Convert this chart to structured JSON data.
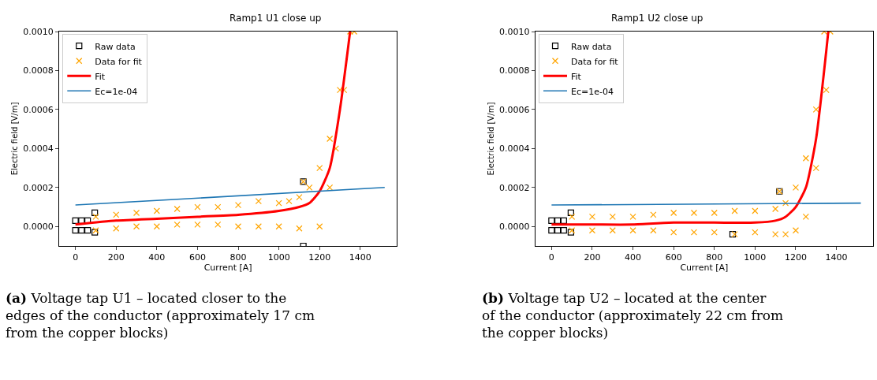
{
  "chart_data": [
    {
      "type": "scatter",
      "title": "Ramp1 U1 close up",
      "xlabel": "Current [A]",
      "ylabel": "Electric field [V/m]",
      "xlim": [
        -80,
        1580
      ],
      "ylim": [
        -0.0001,
        0.001
      ],
      "xticks": [
        0,
        200,
        400,
        600,
        800,
        1000,
        1200,
        1400
      ],
      "yticks": [
        {
          "value": 0,
          "label": "0.0000"
        },
        {
          "value": 0.0002,
          "label": "0.0002"
        },
        {
          "value": 0.0004,
          "label": "0.0004"
        },
        {
          "value": 0.0006,
          "label": "0.0006"
        },
        {
          "value": 0.0008,
          "label": "0.0008"
        },
        {
          "value": 0.001,
          "label": "0.0010"
        }
      ],
      "legend": "top left",
      "annotations": [
        "(a) Voltage tap U1 – located closer to the edges of the conductor (approximately 17 cm from the copper blocks)"
      ],
      "series": [
        {
          "name": "Raw data",
          "type": "scatter",
          "marker": "square",
          "color": "#000000",
          "x": [
            0,
            30,
            60,
            0,
            30,
            60,
            95,
            95,
            1120,
            1120
          ],
          "values": [
            3e-05,
            3e-05,
            3e-05,
            -2e-05,
            -2e-05,
            -2e-05,
            7e-05,
            -3e-05,
            0.00023,
            -0.0001
          ]
        },
        {
          "name": "Data for fit",
          "type": "scatter",
          "marker": "cross",
          "color": "#ffa500",
          "x": [
            100,
            200,
            300,
            400,
            500,
            600,
            700,
            800,
            900,
            1000,
            1050,
            1100,
            1150,
            1200,
            1250,
            1300,
            1350,
            100,
            200,
            300,
            400,
            500,
            600,
            700,
            800,
            900,
            1000,
            1100,
            1200,
            1250,
            1280,
            1320,
            1370,
            1120
          ],
          "values": [
            5e-05,
            6e-05,
            7e-05,
            8e-05,
            9e-05,
            0.0001,
            0.0001,
            0.00011,
            0.00013,
            0.00012,
            0.00013,
            0.00015,
            0.0002,
            0.0003,
            0.00045,
            0.0007,
            0.001,
            -2e-05,
            -1e-05,
            0,
            0,
            1e-05,
            1e-05,
            1e-05,
            0,
            0,
            0,
            -1e-05,
            0,
            0.0002,
            0.0004,
            0.0007,
            0.001,
            0.00023
          ]
        },
        {
          "name": "Fit",
          "type": "line",
          "color": "#ff0000",
          "x": [
            0,
            200,
            400,
            600,
            800,
            1000,
            1100,
            1150,
            1200,
            1250,
            1300,
            1350
          ],
          "values": [
            1e-05,
            3e-05,
            4e-05,
            5e-05,
            6e-05,
            8e-05,
            0.0001,
            0.00012,
            0.00018,
            0.0003,
            0.0006,
            0.001
          ]
        },
        {
          "name": "Ec=1e-04",
          "type": "line",
          "color": "#1f77b4",
          "x": [
            0,
            1520
          ],
          "values": [
            0.00011,
            0.0002
          ]
        }
      ]
    },
    {
      "type": "scatter",
      "title": "Ramp1 U2 close up",
      "xlabel": "Current [A]",
      "ylabel": "Electric field [V/m]",
      "xlim": [
        -80,
        1580
      ],
      "ylim": [
        -0.0001,
        0.001
      ],
      "xticks": [
        0,
        200,
        400,
        600,
        800,
        1000,
        1200,
        1400
      ],
      "yticks": [
        {
          "value": 0,
          "label": "0.0000"
        },
        {
          "value": 0.0002,
          "label": "0.0002"
        },
        {
          "value": 0.0004,
          "label": "0.0004"
        },
        {
          "value": 0.0006,
          "label": "0.0006"
        },
        {
          "value": 0.0008,
          "label": "0.0008"
        },
        {
          "value": 0.001,
          "label": "0.0010"
        }
      ],
      "legend": "top left",
      "annotations": [
        "(b) Voltage tap U2 – located at the center of the conductor (approximately 22 cm from the copper blocks)"
      ],
      "series": [
        {
          "name": "Raw data",
          "type": "scatter",
          "marker": "square",
          "color": "#000000",
          "x": [
            0,
            30,
            60,
            0,
            30,
            60,
            95,
            95,
            1120,
            890
          ],
          "values": [
            3e-05,
            3e-05,
            3e-05,
            -2e-05,
            -2e-05,
            -2e-05,
            7e-05,
            -3e-05,
            0.00018,
            -4e-05
          ]
        },
        {
          "name": "Data for fit",
          "type": "scatter",
          "marker": "cross",
          "color": "#ffa500",
          "x": [
            100,
            200,
            300,
            400,
            500,
            600,
            700,
            800,
            900,
            1000,
            1100,
            1150,
            1200,
            1250,
            1300,
            1340,
            100,
            200,
            300,
            400,
            500,
            600,
            700,
            800,
            900,
            1000,
            1100,
            1150,
            1200,
            1250,
            1300,
            1350,
            1370,
            1120
          ],
          "values": [
            5e-05,
            5e-05,
            5e-05,
            5e-05,
            6e-05,
            7e-05,
            7e-05,
            7e-05,
            8e-05,
            8e-05,
            9e-05,
            0.00012,
            0.0002,
            0.00035,
            0.0006,
            0.001,
            -2e-05,
            -2e-05,
            -2e-05,
            -2e-05,
            -2e-05,
            -3e-05,
            -3e-05,
            -3e-05,
            -4e-05,
            -3e-05,
            -4e-05,
            -4e-05,
            -2e-05,
            5e-05,
            0.0003,
            0.0007,
            0.001,
            0.00018
          ]
        },
        {
          "name": "Fit",
          "type": "line",
          "color": "#ff0000",
          "x": [
            0,
            200,
            400,
            600,
            800,
            1000,
            1100,
            1150,
            1200,
            1250,
            1300,
            1350,
            1360
          ],
          "values": [
            1e-05,
            1e-05,
            1e-05,
            2e-05,
            2e-05,
            2e-05,
            3e-05,
            5e-05,
            0.0001,
            0.0002,
            0.00045,
            0.0009,
            0.001
          ]
        },
        {
          "name": "Ec=1e-04",
          "type": "line",
          "color": "#1f77b4",
          "x": [
            0,
            1520
          ],
          "values": [
            0.00011,
            0.00012
          ]
        }
      ]
    }
  ]
}
